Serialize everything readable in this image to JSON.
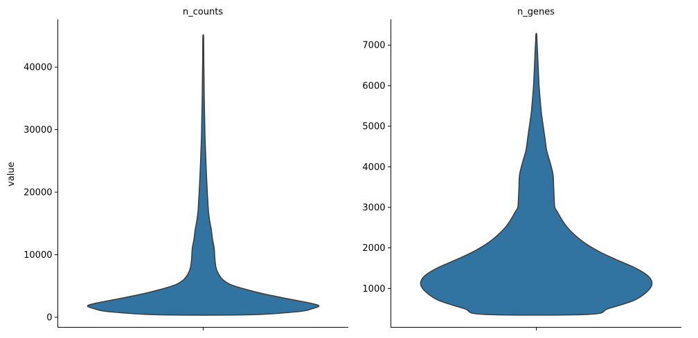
{
  "chart_data": [
    {
      "type": "violin",
      "title": "n_counts",
      "ylabel": "value",
      "xlabel": "",
      "ylim": [
        -1500,
        47500
      ],
      "yticks": [
        0,
        10000,
        20000,
        30000,
        40000
      ],
      "grid": false,
      "color": "#3274a1",
      "density": [
        {
          "y": 400,
          "w": 0.4
        },
        {
          "y": 900,
          "w": 0.82
        },
        {
          "y": 1350,
          "w": 0.94
        },
        {
          "y": 1800,
          "w": 1.0
        },
        {
          "y": 2200,
          "w": 0.94
        },
        {
          "y": 3000,
          "w": 0.72
        },
        {
          "y": 3800,
          "w": 0.51
        },
        {
          "y": 4500,
          "w": 0.36
        },
        {
          "y": 5200,
          "w": 0.24
        },
        {
          "y": 6000,
          "w": 0.17
        },
        {
          "y": 7000,
          "w": 0.13
        },
        {
          "y": 8000,
          "w": 0.11
        },
        {
          "y": 9500,
          "w": 0.1
        },
        {
          "y": 11000,
          "w": 0.095
        },
        {
          "y": 12500,
          "w": 0.08
        },
        {
          "y": 14000,
          "w": 0.07
        },
        {
          "y": 15500,
          "w": 0.055
        },
        {
          "y": 17000,
          "w": 0.045
        },
        {
          "y": 18500,
          "w": 0.04
        },
        {
          "y": 20000,
          "w": 0.035
        },
        {
          "y": 22000,
          "w": 0.03
        },
        {
          "y": 24000,
          "w": 0.025
        },
        {
          "y": 26500,
          "w": 0.02
        },
        {
          "y": 29000,
          "w": 0.015
        },
        {
          "y": 32000,
          "w": 0.012
        },
        {
          "y": 35000,
          "w": 0.009
        },
        {
          "y": 38000,
          "w": 0.007
        },
        {
          "y": 41000,
          "w": 0.005
        },
        {
          "y": 43500,
          "w": 0.004
        },
        {
          "y": 45000,
          "w": 0.003
        }
      ]
    },
    {
      "type": "violin",
      "title": "n_genes",
      "ylabel": "",
      "xlabel": "",
      "ylim": [
        0,
        7650
      ],
      "ymin_axis": 250,
      "yticks": [
        1000,
        2000,
        3000,
        4000,
        5000,
        6000,
        7000
      ],
      "grid": false,
      "color": "#3274a1",
      "density": [
        {
          "y": 360,
          "w": 0.45
        },
        {
          "y": 500,
          "w": 0.62
        },
        {
          "y": 700,
          "w": 0.84
        },
        {
          "y": 900,
          "w": 0.95
        },
        {
          "y": 1100,
          "w": 1.0
        },
        {
          "y": 1300,
          "w": 0.97
        },
        {
          "y": 1500,
          "w": 0.86
        },
        {
          "y": 1700,
          "w": 0.7
        },
        {
          "y": 1900,
          "w": 0.55
        },
        {
          "y": 2100,
          "w": 0.43
        },
        {
          "y": 2300,
          "w": 0.34
        },
        {
          "y": 2500,
          "w": 0.27
        },
        {
          "y": 2700,
          "w": 0.22
        },
        {
          "y": 2900,
          "w": 0.18
        },
        {
          "y": 3000,
          "w": 0.16
        },
        {
          "y": 3200,
          "w": 0.155
        },
        {
          "y": 3500,
          "w": 0.15
        },
        {
          "y": 3800,
          "w": 0.145
        },
        {
          "y": 4100,
          "w": 0.12
        },
        {
          "y": 4400,
          "w": 0.09
        },
        {
          "y": 4700,
          "w": 0.075
        },
        {
          "y": 5000,
          "w": 0.06
        },
        {
          "y": 5300,
          "w": 0.045
        },
        {
          "y": 5600,
          "w": 0.035
        },
        {
          "y": 6000,
          "w": 0.024
        },
        {
          "y": 6400,
          "w": 0.017
        },
        {
          "y": 6800,
          "w": 0.011
        },
        {
          "y": 7100,
          "w": 0.006
        },
        {
          "y": 7270,
          "w": 0.003
        }
      ]
    }
  ]
}
